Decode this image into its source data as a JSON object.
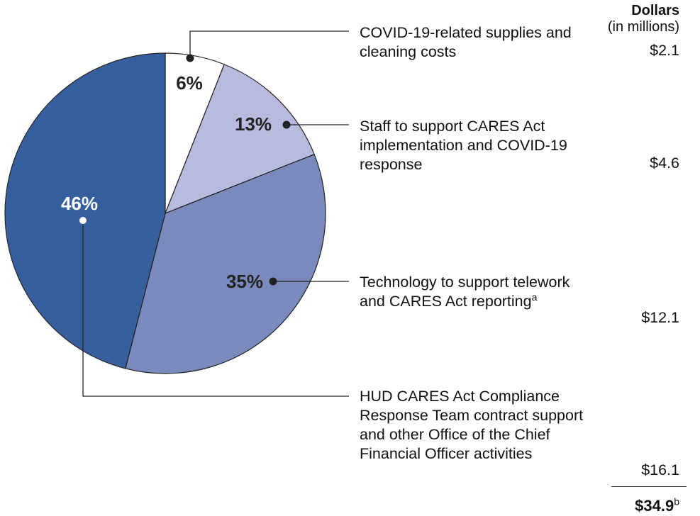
{
  "chart_data": {
    "type": "pie",
    "categories": [
      "COVID-19-related supplies and cleaning costs",
      "Staff to support CARES Act implementation and COVID-19 response",
      "Technology to support telework and CARES Act reporting",
      "HUD CARES Act Compliance Response Team contract support and other Office of the Chief Financial Officer activities"
    ],
    "category_notes": [
      null,
      null,
      "a",
      null
    ],
    "values": [
      6,
      13,
      35,
      46
    ],
    "value_labels": [
      "6%",
      "13%",
      "35%",
      "46%"
    ],
    "colors": [
      "#ffffff",
      "#b8bbdd",
      "#7a8abd",
      "#375f9e"
    ],
    "dollars": {
      "header": "Dollars",
      "subheader": "(in millions)",
      "values": [
        2.1,
        4.6,
        12.1,
        16.1
      ],
      "value_labels": [
        "$2.1",
        "$4.6",
        "$12.1",
        "$16.1"
      ],
      "total": 34.9,
      "total_label": "$34.9",
      "total_note": "b"
    }
  }
}
